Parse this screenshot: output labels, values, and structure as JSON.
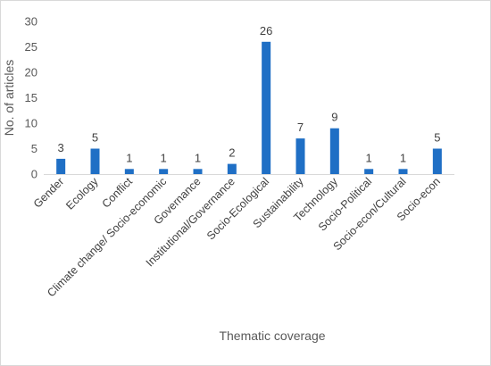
{
  "chart_data": {
    "type": "bar",
    "title": "",
    "xlabel": "Thematic coverage",
    "ylabel": "No. of articles",
    "categories": [
      "Gender",
      "Ecology",
      "Conflict",
      "Climate change/ Socio-economic",
      "Governance",
      "Institutional/Governance",
      "Socio-Ecological",
      "Sustainability",
      "Technology",
      "Socio-Political",
      "Socio-econ/Cultural",
      "Socio-econ"
    ],
    "values": [
      3,
      5,
      1,
      1,
      1,
      2,
      26,
      7,
      9,
      1,
      1,
      5
    ],
    "ylim": [
      0,
      30
    ],
    "yticks": [
      0,
      5,
      10,
      15,
      20,
      25,
      30
    ],
    "grid": false,
    "legend": "none",
    "bar_color": "#1f6fc5",
    "axis_color": "#d9d9d9"
  }
}
